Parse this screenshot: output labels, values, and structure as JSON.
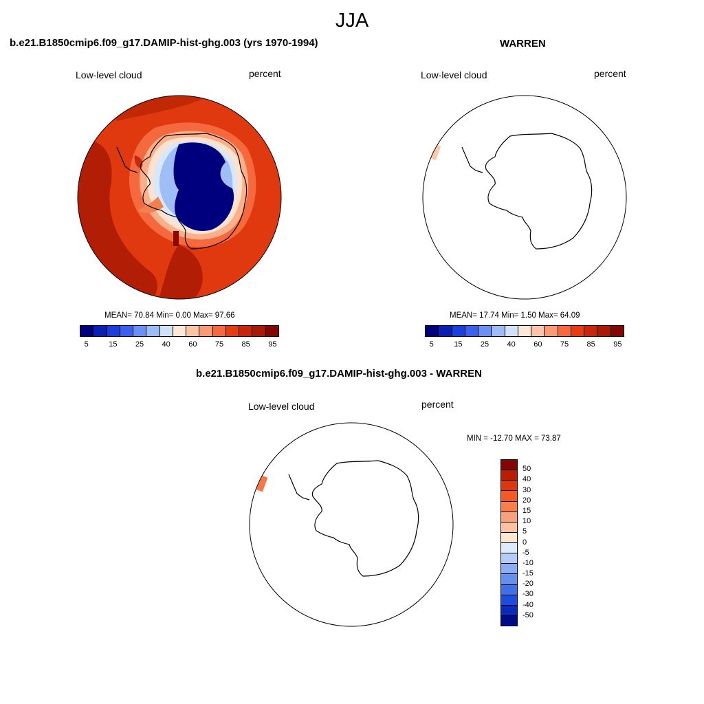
{
  "season": "JJA",
  "panels": [
    {
      "title": "b.e21.B1850cmip6.f09_g17.DAMIP-hist-ghg.003 (yrs 1970-1994)",
      "variable": "Low-level cloud",
      "units": "percent",
      "stats": "MEAN=  70.84  Min=   0.00  Max=  97.66"
    },
    {
      "title": "WARREN",
      "variable": "Low-level cloud",
      "units": "percent",
      "stats": "MEAN=  17.74  Min=   1.50  Max=  64.09"
    },
    {
      "title": "b.e21.B1850cmip6.f09_g17.DAMIP-hist-ghg.003 - WARREN",
      "variable": "Low-level cloud",
      "units": "percent",
      "stats": "MIN = -12.70 MAX =  73.87"
    }
  ],
  "abs_colorbar": {
    "colors": [
      "#00007f",
      "#0a1fb3",
      "#1a40dc",
      "#3a60f0",
      "#6a8ff5",
      "#9bbcf8",
      "#cfe2fa",
      "#fde8d6",
      "#fcc4a4",
      "#fa9a72",
      "#f6693f",
      "#e73b14",
      "#c9250a",
      "#a81a06",
      "#840600"
    ],
    "labels": [
      "5",
      "15",
      "25",
      "40",
      "60",
      "75",
      "85",
      "95"
    ]
  },
  "diff_colorbar": {
    "colors_top_to_bottom": [
      "#840600",
      "#b71e04",
      "#e0360f",
      "#f55a24",
      "#f97e4b",
      "#fba17a",
      "#fdc2a2",
      "#fde6d2",
      "#dcebfb",
      "#b3cdf8",
      "#8cacf4",
      "#6690f0",
      "#3f6fe9",
      "#1c4ce0",
      "#0b2bbd",
      "#000a8a"
    ],
    "labels_top_to_bottom": [
      "50",
      "40",
      "30",
      "20",
      "15",
      "10",
      "5",
      "0",
      "-5",
      "-10",
      "-15",
      "-20",
      "-30",
      "-40",
      "-50"
    ]
  }
}
